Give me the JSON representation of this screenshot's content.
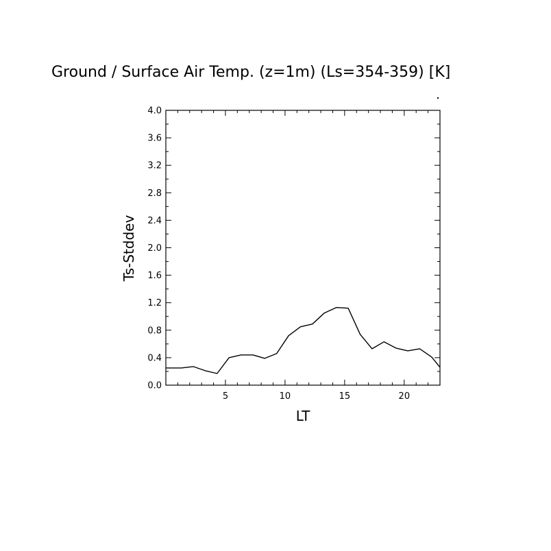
{
  "chart_data": {
    "type": "line",
    "title": "Ground / Surface Air Temp. (z=1m) (Ls=354-359) [K]",
    "xlabel": "LT",
    "ylabel": "Ts-Stddev",
    "xlim": [
      0,
      23
    ],
    "ylim": [
      0.0,
      4.0
    ],
    "x_ticks": [
      5,
      10,
      15,
      20
    ],
    "x_tick_labels": [
      "5",
      "10",
      "15",
      "20"
    ],
    "y_ticks": [
      0.0,
      0.4,
      0.8,
      1.2,
      1.6,
      2.0,
      2.4,
      2.8,
      3.2,
      3.6,
      4.0
    ],
    "y_tick_labels": [
      "0.0",
      "0.4",
      "0.8",
      "1.2",
      "1.6",
      "2.0",
      "2.4",
      "2.8",
      "3.2",
      "3.6",
      "4.0"
    ],
    "grid": false,
    "legend": "none",
    "series": [
      {
        "x": [
          0.0,
          1.3,
          2.3,
          3.3,
          4.3,
          5.3,
          6.3,
          7.3,
          8.3,
          9.3,
          10.3,
          11.3,
          12.3,
          13.3,
          14.3,
          15.3,
          16.3,
          17.3,
          18.3,
          19.3,
          20.3,
          21.3,
          22.3,
          23.0
        ],
        "values": [
          0.25,
          0.25,
          0.27,
          0.21,
          0.17,
          0.4,
          0.44,
          0.44,
          0.39,
          0.46,
          0.72,
          0.85,
          0.89,
          1.05,
          1.13,
          1.12,
          0.74,
          0.53,
          0.63,
          0.54,
          0.5,
          0.53,
          0.41,
          0.26
        ]
      }
    ],
    "colors": {
      "line": "#000000",
      "axes": "#000000",
      "background": "#ffffff"
    }
  }
}
